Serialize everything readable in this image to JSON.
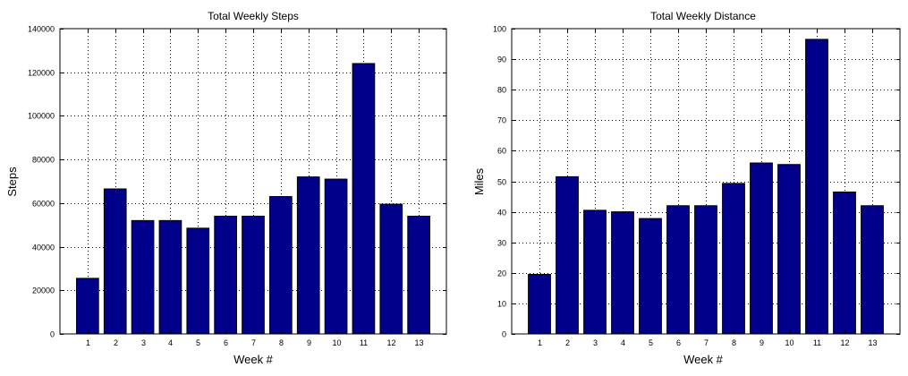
{
  "colors": {
    "bar_fill": "#00008b",
    "bar_stroke": "#000000",
    "grid": "#000000",
    "axes": "#000000"
  },
  "chart_data": [
    {
      "type": "bar",
      "title": "Total Weekly Steps",
      "xlabel": "Week #",
      "ylabel": "Steps",
      "categories": [
        "1",
        "2",
        "3",
        "4",
        "5",
        "6",
        "7",
        "8",
        "9",
        "10",
        "11",
        "12",
        "13"
      ],
      "values": [
        25500,
        66500,
        52000,
        52000,
        48500,
        54000,
        54000,
        63000,
        72000,
        71000,
        124000,
        59500,
        54000
      ],
      "ylim": [
        0,
        140000
      ],
      "yticks": [
        "0",
        "20000",
        "40000",
        "60000",
        "80000",
        "100000",
        "120000",
        "140000"
      ],
      "grid": true,
      "grid_style": "dotted"
    },
    {
      "type": "bar",
      "title": "Total Weekly Distance",
      "xlabel": "Week #",
      "ylabel": "Miles",
      "categories": [
        "1",
        "2",
        "3",
        "4",
        "5",
        "6",
        "7",
        "8",
        "9",
        "10",
        "11",
        "12",
        "13"
      ],
      "values": [
        19.5,
        51.5,
        40.5,
        40,
        37.8,
        42,
        42,
        49.3,
        56,
        55.5,
        96.5,
        46.5,
        42
      ],
      "ylim": [
        0,
        100
      ],
      "yticks": [
        "0",
        "10",
        "20",
        "30",
        "40",
        "50",
        "60",
        "70",
        "80",
        "90",
        "100"
      ],
      "grid": true,
      "grid_style": "dotted"
    }
  ]
}
